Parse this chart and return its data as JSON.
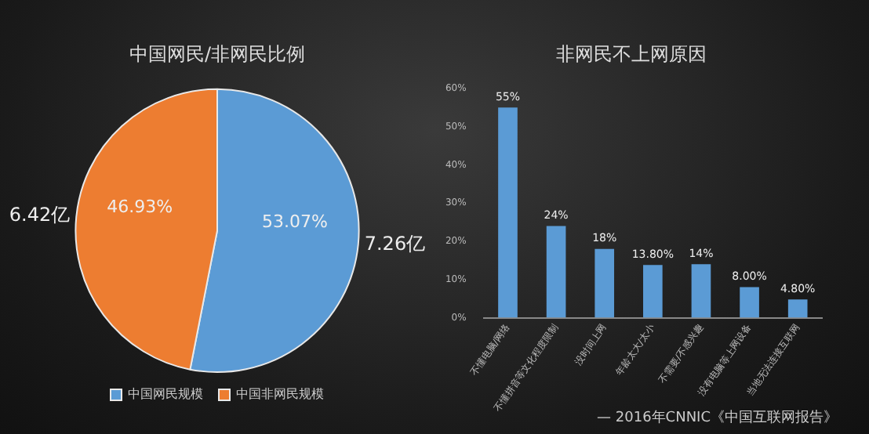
{
  "chart_data": [
    {
      "type": "pie",
      "title": "中国网民/非网民比例",
      "categories": [
        "中国网民规模",
        "中国非网民规模"
      ],
      "values": [
        53.07,
        46.93
      ],
      "colors": [
        "#5b9bd5",
        "#ed7d31"
      ],
      "value_labels": [
        "53.07%",
        "46.93%"
      ],
      "annotations": [
        {
          "text": "7.26亿",
          "x": "中国网民规模"
        },
        {
          "text": "6.42亿",
          "x": "中国非网民规模"
        }
      ],
      "legend": "bottom"
    },
    {
      "type": "bar",
      "title": "非网民不上网原因",
      "categories": [
        "不懂电脑/网络",
        "不懂拼音等文化程度限制",
        "没时间上网",
        "年龄太大/太小",
        "不需要/不感兴趣",
        "没有电脑等上网设备",
        "当地无法连接互联网"
      ],
      "values": [
        55,
        24,
        18,
        13.8,
        14,
        8,
        4.8
      ],
      "color": "#5b9bd5",
      "value_labels": [
        "55%",
        "24%",
        "18%",
        "13.80%",
        "14%",
        "8.00%",
        "4.80%"
      ],
      "ylim": [
        0,
        60
      ],
      "yticks": [
        {
          "value": 0,
          "label": "0%"
        },
        {
          "value": 10,
          "label": "10%"
        },
        {
          "value": 20,
          "label": "20%"
        },
        {
          "value": 30,
          "label": "30%"
        },
        {
          "value": 40,
          "label": "40%"
        },
        {
          "value": 50,
          "label": "50%"
        },
        {
          "value": 60,
          "label": "60%"
        }
      ],
      "annotations": [
        "— 2016年CNNIC《中国互联网报告》"
      ]
    }
  ]
}
